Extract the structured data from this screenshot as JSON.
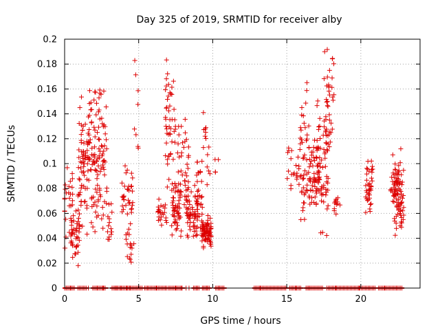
{
  "chart_data": {
    "type": "scatter",
    "title": "Day 325 of 2019, SRMTID for receiver alby",
    "xlabel": "GPS time / hours",
    "ylabel": "SRMTID / TECUs",
    "xlim": [
      0,
      24
    ],
    "ylim": [
      0,
      0.2
    ],
    "xticks": [
      0,
      5,
      10,
      15,
      20
    ],
    "xtick_labels": [
      "0",
      "5",
      "10",
      "15",
      "20"
    ],
    "yticks": [
      0,
      0.02,
      0.04,
      0.06,
      0.08,
      0.1,
      0.12,
      0.14,
      0.16,
      0.18,
      0.2
    ],
    "ytick_labels": [
      "0",
      "0.02",
      "0.04",
      "0.06",
      "0.08",
      "0.1",
      "0.12",
      "0.14",
      "0.16",
      "0.18",
      "0.2"
    ],
    "grid": true,
    "marker": "+",
    "color": "#dd0000",
    "zero_bands": [
      [
        0.0,
        0.7
      ],
      [
        0.9,
        1.5
      ],
      [
        1.9,
        2.8
      ],
      [
        3.2,
        3.6
      ],
      [
        3.4,
        4.5
      ],
      [
        4.4,
        5.3
      ],
      [
        5.4,
        6.9
      ],
      [
        7.0,
        8.0
      ],
      [
        8.7,
        9.1
      ],
      [
        9.3,
        9.8
      ],
      [
        10.2,
        10.8
      ],
      [
        12.8,
        15.0
      ],
      [
        15.2,
        16.0
      ],
      [
        16.3,
        17.5
      ],
      [
        17.8,
        21.0
      ],
      [
        21.2,
        22.8
      ]
    ],
    "zero_points": [
      0.1,
      0.4,
      1.6,
      2.2,
      2.6,
      3.8,
      4.2,
      5.6,
      6.2,
      6.8,
      7.5,
      7.9,
      8.2,
      8.4,
      8.9,
      9.4,
      9.6,
      10.4,
      13.2,
      15.6,
      16.5,
      17.7,
      18.3,
      19.9,
      20.5,
      21.6,
      22.4
    ],
    "clusters": [
      {
        "x": [
          0.0,
          0.55
        ],
        "y": [
          0.03,
          0.1
        ],
        "n": 28
      },
      {
        "x": [
          0.4,
          1.0
        ],
        "y": [
          0.015,
          0.075
        ],
        "n": 40
      },
      {
        "x": [
          0.9,
          1.6
        ],
        "y": [
          0.04,
          0.16
        ],
        "n": 70
      },
      {
        "x": [
          1.6,
          2.2
        ],
        "y": [
          0.035,
          0.167
        ],
        "n": 60
      },
      {
        "x": [
          2.2,
          2.85
        ],
        "y": [
          0.045,
          0.167
        ],
        "n": 60
      },
      {
        "x": [
          2.85,
          3.2
        ],
        "y": [
          0.03,
          0.075
        ],
        "n": 14
      },
      {
        "x": [
          3.8,
          4.6
        ],
        "y": [
          0.045,
          0.107
        ],
        "n": 34
      },
      {
        "x": [
          4.1,
          4.7
        ],
        "y": [
          0.015,
          0.06
        ],
        "n": 16
      },
      {
        "x": [
          4.7,
          5.0
        ],
        "y": [
          0.09,
          0.185
        ],
        "n": 8
      },
      {
        "x": [
          6.3,
          6.9
        ],
        "y": [
          0.045,
          0.075
        ],
        "n": 24
      },
      {
        "x": [
          6.8,
          7.5
        ],
        "y": [
          0.07,
          0.191
        ],
        "n": 50
      },
      {
        "x": [
          7.2,
          7.9
        ],
        "y": [
          0.035,
          0.09
        ],
        "n": 48
      },
      {
        "x": [
          7.6,
          8.4
        ],
        "y": [
          0.045,
          0.15
        ],
        "n": 40
      },
      {
        "x": [
          8.2,
          9.0
        ],
        "y": [
          0.035,
          0.085
        ],
        "n": 56
      },
      {
        "x": [
          8.9,
          9.3
        ],
        "y": [
          0.03,
          0.11
        ],
        "n": 30
      },
      {
        "x": [
          9.25,
          9.9
        ],
        "y": [
          0.03,
          0.06
        ],
        "n": 80
      },
      {
        "x": [
          9.3,
          9.6
        ],
        "y": [
          0.1,
          0.145
        ],
        "n": 8
      },
      {
        "x": [
          9.6,
          10.4
        ],
        "y": [
          0.075,
          0.12
        ],
        "n": 10
      },
      {
        "x": [
          15.0,
          15.9
        ],
        "y": [
          0.075,
          0.12
        ],
        "n": 22
      },
      {
        "x": [
          15.9,
          16.6
        ],
        "y": [
          0.045,
          0.18
        ],
        "n": 50
      },
      {
        "x": [
          16.5,
          17.2
        ],
        "y": [
          0.06,
          0.13
        ],
        "n": 50
      },
      {
        "x": [
          17.0,
          17.8
        ],
        "y": [
          0.04,
          0.16
        ],
        "n": 60
      },
      {
        "x": [
          17.5,
          18.2
        ],
        "y": [
          0.1,
          0.195
        ],
        "n": 40
      },
      {
        "x": [
          18.2,
          18.6
        ],
        "y": [
          0.055,
          0.08
        ],
        "n": 12
      },
      {
        "x": [
          20.3,
          20.8
        ],
        "y": [
          0.055,
          0.11
        ],
        "n": 40
      },
      {
        "x": [
          22.0,
          22.7
        ],
        "y": [
          0.04,
          0.115
        ],
        "n": 60
      },
      {
        "x": [
          22.3,
          22.9
        ],
        "y": [
          0.04,
          0.1
        ],
        "n": 40
      }
    ]
  }
}
